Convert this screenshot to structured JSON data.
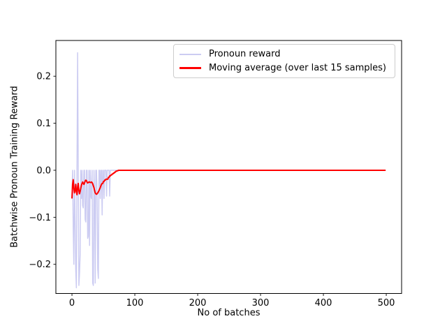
{
  "chart_data": {
    "type": "line",
    "title": "",
    "xlabel": "No of batches",
    "ylabel": "Batchwise Pronoun Training Reward",
    "grid": false,
    "legend_position": "upper right",
    "xlim": [
      -25.6,
      524.4
    ],
    "ylim": [
      -0.262,
      0.276
    ],
    "xticks": {
      "values": [
        0,
        100,
        200,
        300,
        400,
        500
      ],
      "labels": [
        "0",
        "100",
        "200",
        "300",
        "400",
        "500"
      ]
    },
    "yticks": {
      "values": [
        0.2,
        0.1,
        0.0,
        -0.1,
        -0.2
      ],
      "labels": [
        "0.2",
        "0.1",
        "0.0",
        "−0.1",
        "−0.2"
      ]
    },
    "series": [
      {
        "name": "Pronoun reward",
        "slug": "pronoun-reward",
        "color": "#ccccf2",
        "linewidth": 1.5,
        "x_start": 0,
        "x_end": 499,
        "y_fill": 0.0,
        "y_head": [
          -0.06,
          0,
          -0.125,
          -0.2,
          0,
          -0.105,
          -0.21,
          -0.25,
          0,
          0.25,
          0,
          -0.245,
          -0.22,
          -0.18,
          0,
          -0.06,
          0,
          -0.075,
          -0.08,
          0,
          0,
          -0.105,
          -0.11,
          0,
          0,
          -0.145,
          -0.14,
          0,
          -0.16,
          0,
          -0.055,
          -0.06,
          0,
          -0.24,
          -0.245,
          0,
          -0.055,
          -0.24,
          0,
          0,
          -0.06,
          -0.21,
          -0.23,
          0,
          0,
          -0.06,
          0,
          0,
          -0.095,
          0,
          0,
          -0.06,
          0,
          0,
          0,
          -0.055,
          0,
          0,
          0,
          0,
          -0.055,
          0,
          0,
          0,
          0
        ]
      },
      {
        "name": "Moving average (over last 15 samples)",
        "slug": "moving-average",
        "color": "#ff0000",
        "linewidth": 2,
        "x_start": 0,
        "x_end": 499,
        "y_fill": 0.0,
        "y_head": [
          -0.06,
          -0.03,
          -0.02,
          -0.038,
          -0.048,
          -0.042,
          -0.03,
          -0.046,
          -0.052,
          -0.036,
          -0.028,
          -0.043,
          -0.05,
          -0.045,
          -0.038,
          -0.032,
          -0.028,
          -0.025,
          -0.028,
          -0.03,
          -0.027,
          -0.023,
          -0.021,
          -0.022,
          -0.025,
          -0.027,
          -0.026,
          -0.025,
          -0.025,
          -0.026,
          -0.026,
          -0.025,
          -0.026,
          -0.029,
          -0.033,
          -0.037,
          -0.043,
          -0.048,
          -0.05,
          -0.051,
          -0.05,
          -0.048,
          -0.046,
          -0.043,
          -0.04,
          -0.037,
          -0.033,
          -0.03,
          -0.028,
          -0.028,
          -0.024,
          -0.024,
          -0.021,
          -0.021,
          -0.019,
          -0.019,
          -0.019,
          -0.019,
          -0.015,
          -0.015,
          -0.012,
          -0.012,
          -0.01,
          -0.01,
          -0.008,
          -0.008,
          -0.006,
          -0.006,
          -0.004,
          -0.004,
          -0.002,
          -0.002,
          -0.001,
          -0.001,
          0,
          0
        ]
      }
    ]
  },
  "legend": {
    "items": [
      {
        "label": "Pronoun reward",
        "color": "#ccccf2"
      },
      {
        "label": "Moving average (over last 15 samples)",
        "color": "#ff0000"
      }
    ]
  }
}
